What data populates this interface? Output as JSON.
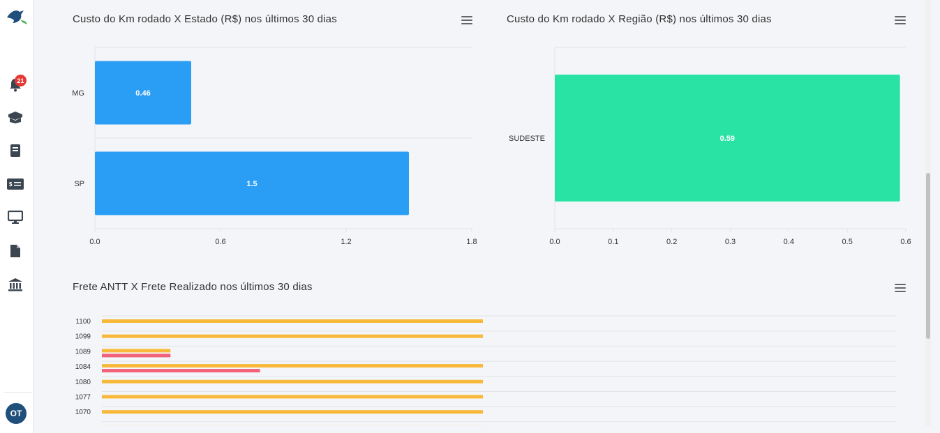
{
  "sidebar": {
    "notification_count": "21",
    "avatar_initials": "OT",
    "icons": [
      "logo-bird-icon",
      "bell-icon",
      "box-icon",
      "book-icon",
      "money-icon",
      "monitor-icon",
      "file-icon",
      "bank-icon"
    ]
  },
  "colors": {
    "blue": "#2a9df4",
    "green": "#28e3a4",
    "orange": "#f8b93a",
    "red": "#f0627a"
  },
  "charts": {
    "estado_title": "Custo do Km rodado X Estado (R$) nos últimos 30 dias",
    "regiao_title": "Custo do Km rodado X Região (R$) nos últimos 30 dias",
    "frete_title": "Frete ANTT X Frete Realizado nos últimos 30 dias"
  },
  "chart_data": [
    {
      "type": "bar",
      "orientation": "horizontal",
      "title": "Custo do Km rodado X Estado (R$) nos últimos 30 dias",
      "categories": [
        "MG",
        "SP"
      ],
      "values": [
        0.46,
        1.5
      ],
      "data_labels": [
        "0.46",
        "1.5"
      ],
      "xlim": [
        0,
        1.8
      ],
      "xticks": [
        "0.0",
        "0.6",
        "1.2",
        "1.8"
      ],
      "grid": true
    },
    {
      "type": "bar",
      "orientation": "horizontal",
      "title": "Custo do Km rodado X Região (R$) nos últimos 30 dias",
      "categories": [
        "SUDESTE"
      ],
      "values": [
        0.59
      ],
      "data_labels": [
        "0.59"
      ],
      "xlim": [
        0,
        0.6
      ],
      "xticks": [
        "0.0",
        "0.1",
        "0.2",
        "0.3",
        "0.4",
        "0.5",
        "0.6"
      ],
      "grid": true
    },
    {
      "type": "bar",
      "orientation": "horizontal",
      "title": "Frete ANTT X Frete Realizado nos últimos 30 dias",
      "categories": [
        "1100",
        "1099",
        "1089",
        "1084",
        "1080",
        "1077",
        "1070"
      ],
      "series": [
        {
          "values": [
            1,
            1,
            0.18,
            1,
            1,
            1,
            1
          ]
        },
        {
          "values": [
            null,
            null,
            0.18,
            0.415,
            null,
            null,
            null
          ]
        }
      ],
      "grid": true
    }
  ]
}
